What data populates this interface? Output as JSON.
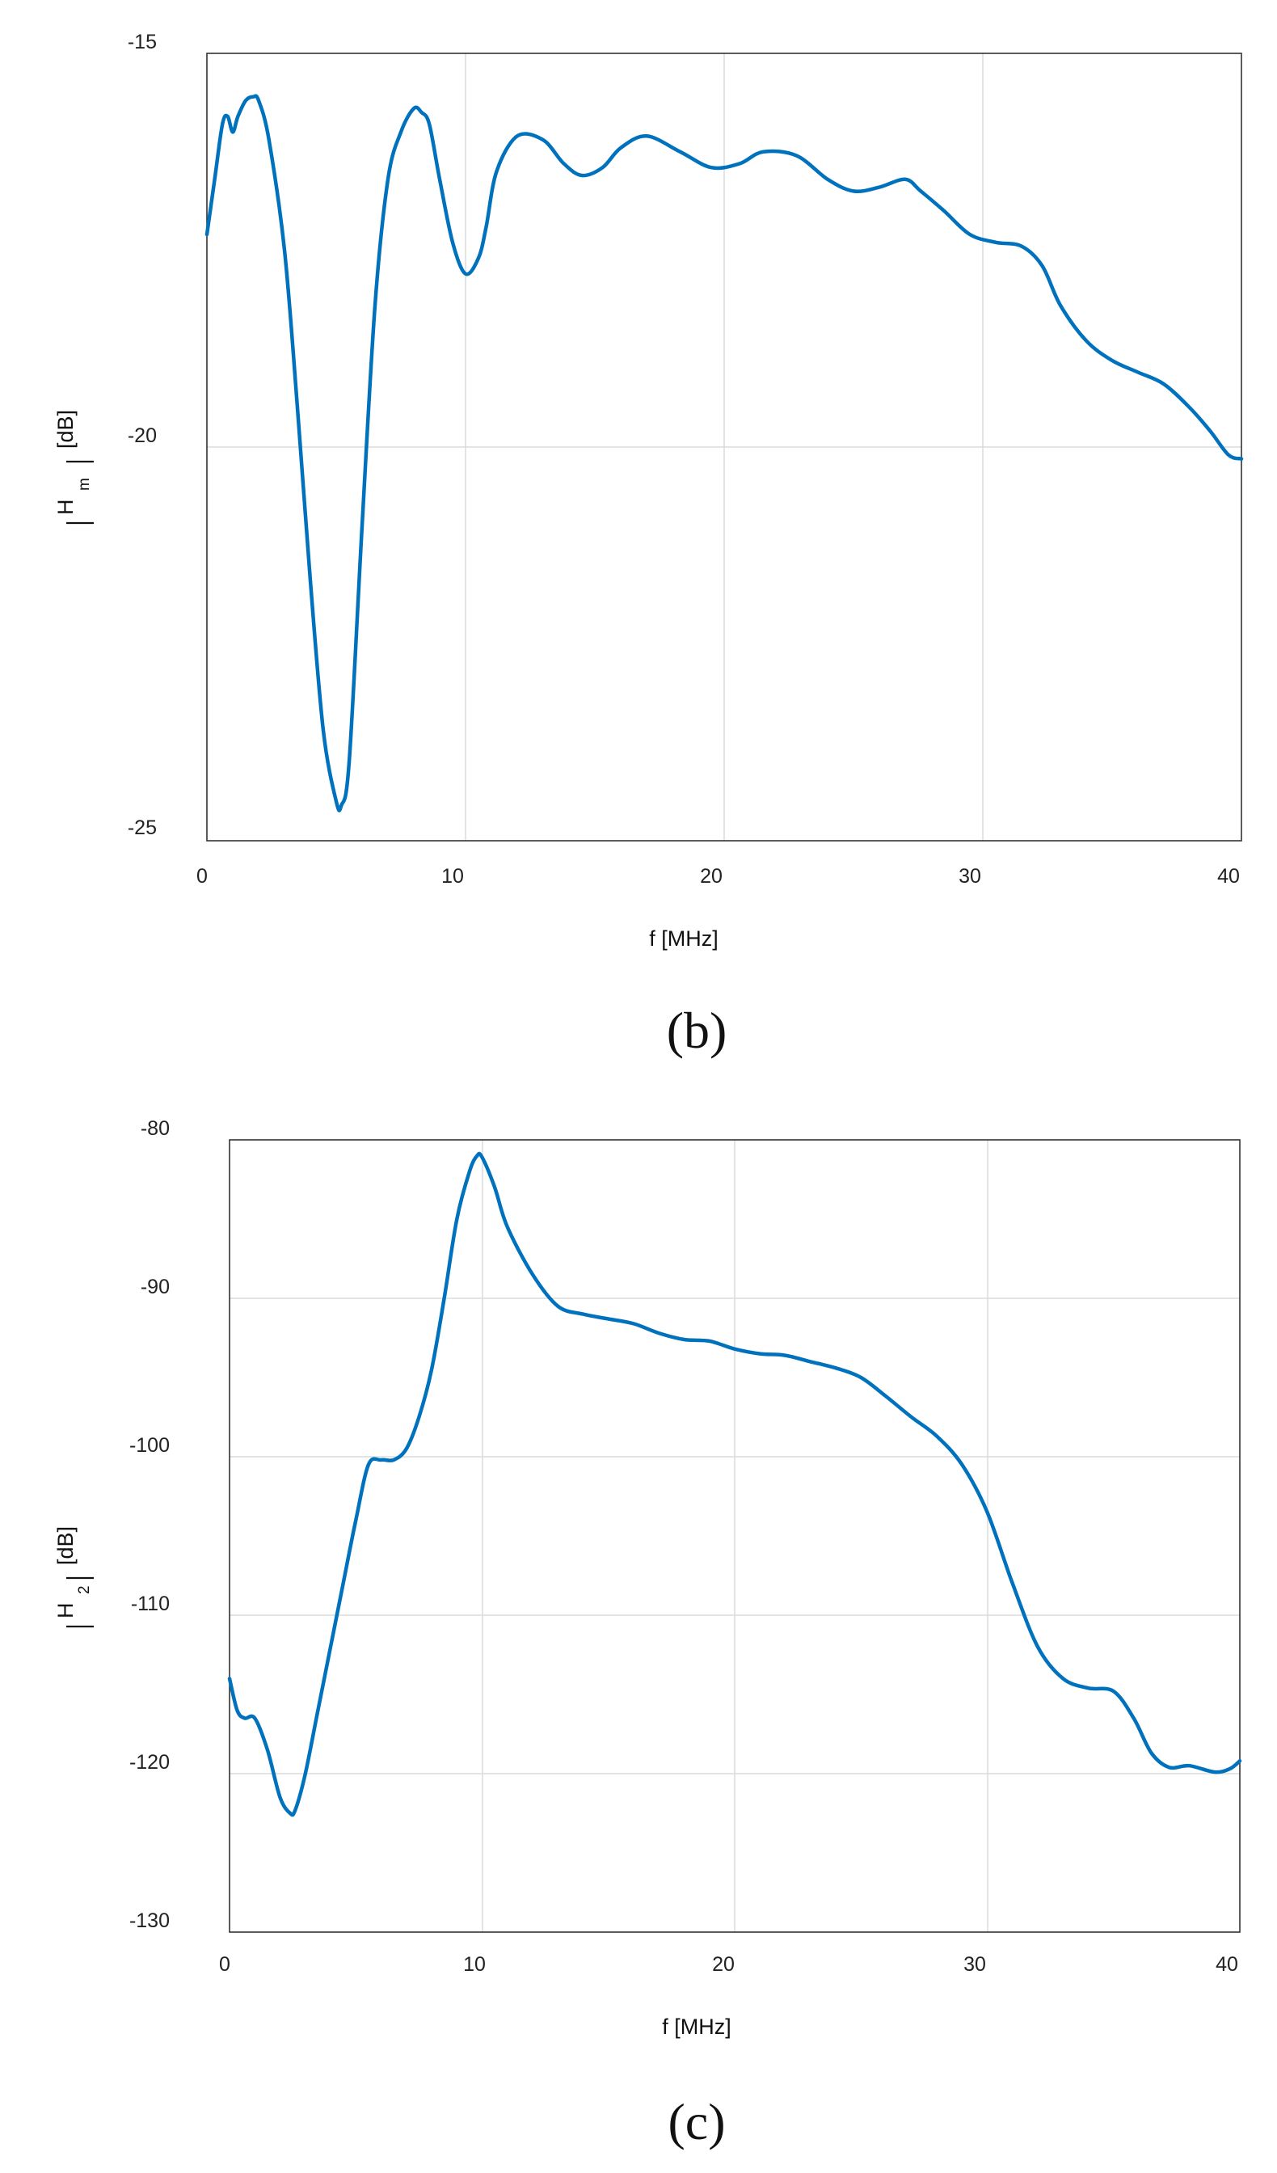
{
  "chart_data": [
    {
      "type": "line",
      "panel_label": "(b)",
      "xlabel": "f [MHz]",
      "ylabel": "[dB]",
      "ylabel_symbol": "H",
      "ylabel_subscript": "m",
      "xlim": [
        0,
        40
      ],
      "ylim": [
        -25,
        -15
      ],
      "xticks": [
        0,
        10,
        20,
        30,
        40
      ],
      "yticks": [
        -25,
        -20,
        -15
      ],
      "xtick_labels": [
        "0",
        "10",
        "20",
        "30",
        "40"
      ],
      "ytick_labels": [
        "-25",
        "-20",
        "-15"
      ],
      "grid": true,
      "color": "#0072BD",
      "series": [
        {
          "x": [
            0,
            0.3,
            0.6,
            0.8,
            1.0,
            1.2,
            1.5,
            1.8,
            2.0,
            2.4,
            3.0,
            3.5,
            4.0,
            4.5,
            5.0,
            5.2,
            5.5,
            6.0,
            6.5,
            7.0,
            7.5,
            8.0,
            8.3,
            8.6,
            9.0,
            9.5,
            10.0,
            10.5,
            10.8,
            11.2,
            12.0,
            13.0,
            13.8,
            14.5,
            15.3,
            16.0,
            17.0,
            18.3,
            19.5,
            20.6,
            21.5,
            22.8,
            24.0,
            25.0,
            26.0,
            27.0,
            27.6,
            28.5,
            29.5,
            30.5,
            31.5,
            32.3,
            33.0,
            34.0,
            35.0,
            36.0,
            37.0,
            38.0,
            38.8,
            39.5,
            40.0
          ],
          "y": [
            -17.3,
            -16.6,
            -15.9,
            -15.8,
            -16.0,
            -15.8,
            -15.6,
            -15.55,
            -15.6,
            -16.1,
            -17.5,
            -19.5,
            -21.7,
            -23.6,
            -24.5,
            -24.55,
            -24.0,
            -21.0,
            -18.2,
            -16.6,
            -16.0,
            -15.7,
            -15.75,
            -15.9,
            -16.6,
            -17.4,
            -17.8,
            -17.6,
            -17.2,
            -16.5,
            -16.05,
            -16.1,
            -16.4,
            -16.55,
            -16.45,
            -16.2,
            -16.05,
            -16.25,
            -16.45,
            -16.4,
            -16.25,
            -16.3,
            -16.6,
            -16.75,
            -16.7,
            -16.6,
            -16.75,
            -17.0,
            -17.3,
            -17.4,
            -17.45,
            -17.7,
            -18.2,
            -18.65,
            -18.9,
            -19.05,
            -19.2,
            -19.5,
            -19.8,
            -20.1,
            -20.15
          ]
        }
      ]
    },
    {
      "type": "line",
      "panel_label": "(c)",
      "xlabel": "f [MHz]",
      "ylabel": "[dB]",
      "ylabel_symbol": "H",
      "ylabel_subscript": "2",
      "xlim": [
        0,
        40
      ],
      "ylim": [
        -130,
        -80
      ],
      "xticks": [
        0,
        10,
        20,
        30,
        40
      ],
      "yticks": [
        -130,
        -120,
        -110,
        -100,
        -90,
        -80
      ],
      "xtick_labels": [
        "0",
        "10",
        "20",
        "30",
        "40"
      ],
      "ytick_labels": [
        "-130",
        "-120",
        "-110",
        "-100",
        "-90",
        "-80"
      ],
      "grid": true,
      "color": "#0072BD",
      "series": [
        {
          "x": [
            0,
            0.3,
            0.6,
            1.0,
            1.5,
            2.0,
            2.4,
            2.6,
            3.0,
            3.5,
            4.0,
            4.5,
            5.0,
            5.5,
            6.0,
            6.5,
            7.0,
            7.5,
            8.0,
            8.5,
            9.0,
            9.5,
            9.8,
            10.0,
            10.5,
            11.0,
            12.0,
            13.0,
            14.0,
            15.0,
            16.0,
            17.0,
            18.0,
            19.0,
            20.0,
            21.0,
            22.0,
            23.0,
            24.0,
            25.0,
            26.0,
            27.0,
            28.0,
            29.0,
            30.0,
            31.0,
            32.0,
            33.0,
            34.0,
            35.0,
            35.8,
            36.5,
            37.2,
            38.0,
            39.0,
            39.6,
            40.0
          ],
          "y": [
            -114,
            -116,
            -116.5,
            -116.5,
            -118.5,
            -121.5,
            -122.5,
            -122.3,
            -120,
            -116,
            -112,
            -108,
            -104,
            -100.5,
            -100.2,
            -100.2,
            -99.5,
            -97.5,
            -94.5,
            -90,
            -85,
            -82,
            -81,
            -81.1,
            -83,
            -85.5,
            -88.5,
            -90.5,
            -91.0,
            -91.3,
            -91.6,
            -92.2,
            -92.6,
            -92.7,
            -93.2,
            -93.5,
            -93.6,
            -94.0,
            -94.4,
            -95.0,
            -96.2,
            -97.5,
            -98.7,
            -100.5,
            -103.5,
            -108,
            -112,
            -114,
            -114.6,
            -114.8,
            -116.5,
            -118.7,
            -119.6,
            -119.5,
            -119.9,
            -119.7,
            -119.2
          ]
        }
      ]
    }
  ]
}
